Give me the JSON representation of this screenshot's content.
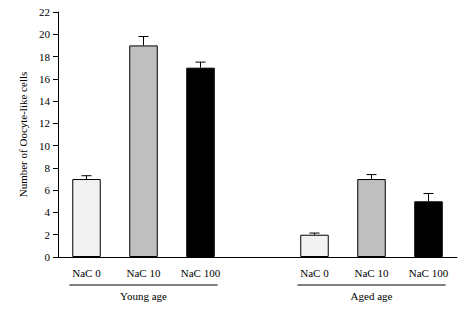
{
  "chart_data": {
    "type": "bar",
    "y_label": "Number of Oocyte-like cells",
    "categories": [
      "NaC 0",
      "NaC 10",
      "NaC 100",
      null,
      "NaC 0",
      "NaC 10",
      "NaC 100"
    ],
    "values": [
      7,
      19,
      17,
      null,
      2,
      7,
      5
    ],
    "errors": [
      0.3,
      0.8,
      0.5,
      null,
      0.15,
      0.4,
      0.7
    ],
    "colors": [
      "#f2f2f2",
      "#bfbfbf",
      "#000000",
      null,
      "#f2f2f2",
      "#bfbfbf",
      "#000000"
    ],
    "group_labels": [
      "Young age",
      "Aged age"
    ],
    "ylim": [
      0,
      22
    ],
    "yticks": [
      0,
      2,
      4,
      6,
      8,
      10,
      12,
      14,
      16,
      18,
      20,
      22
    ],
    "grid": false
  }
}
